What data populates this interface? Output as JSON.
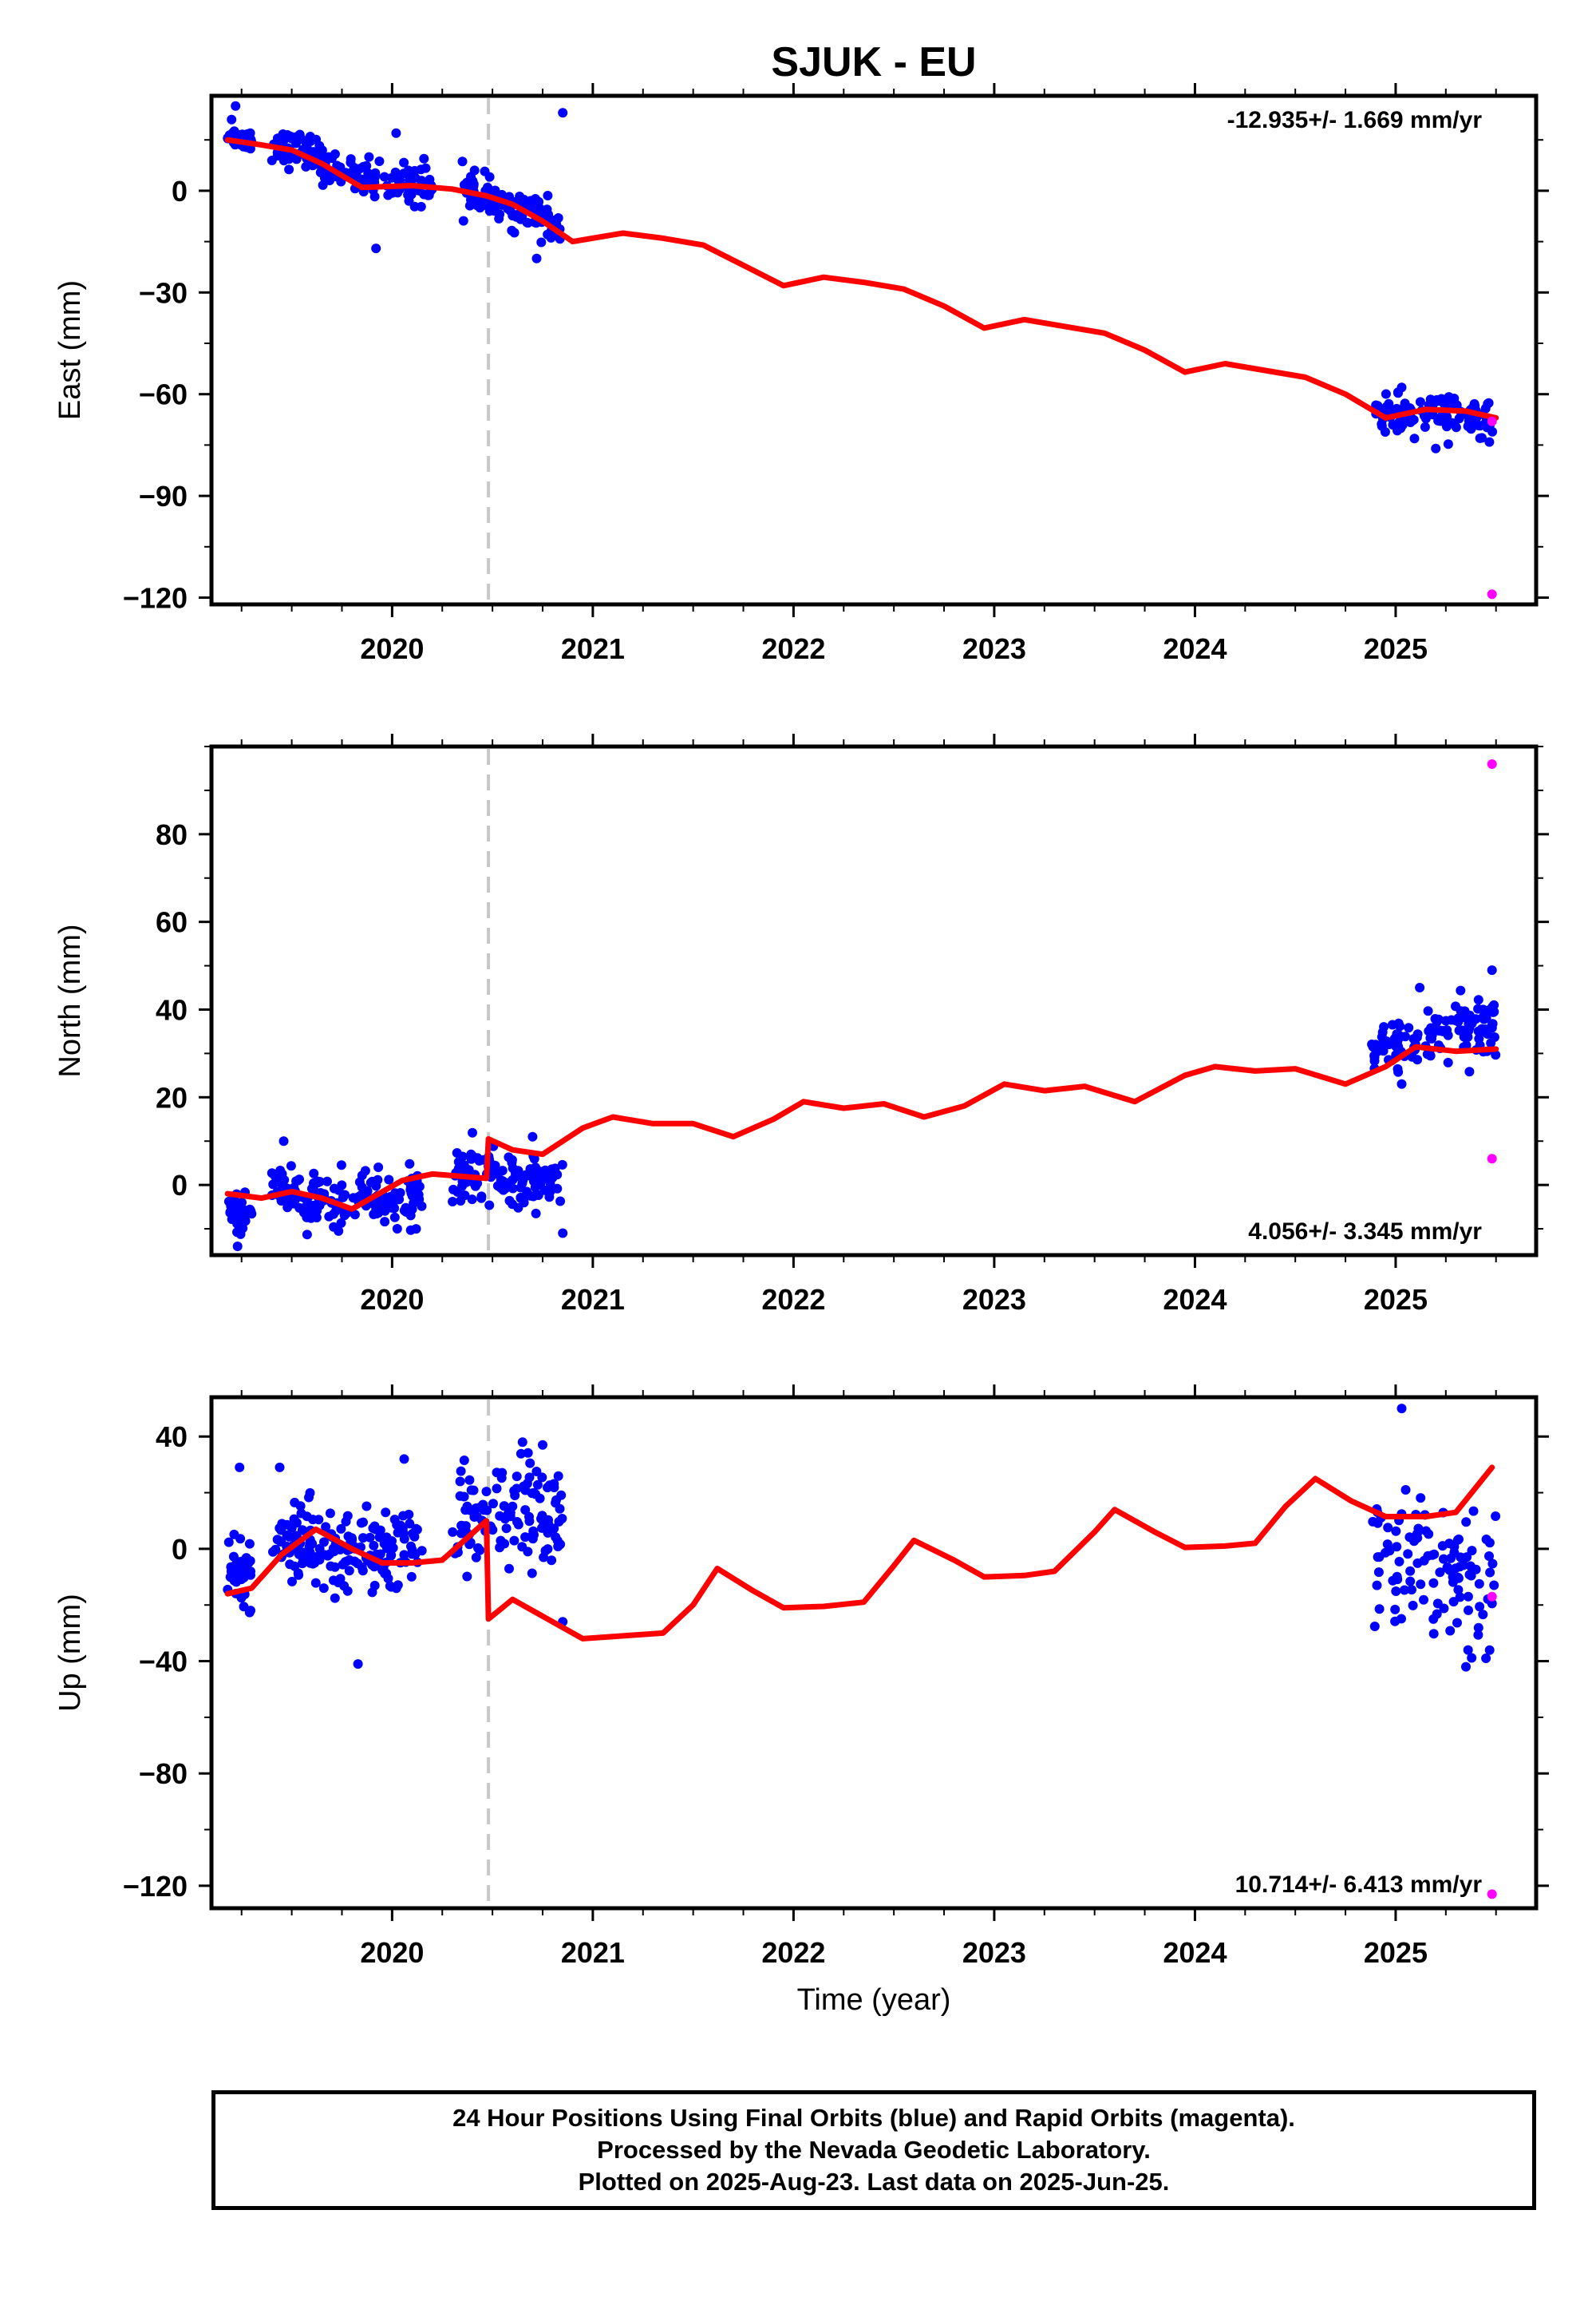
{
  "title": "SJUK - EU",
  "colors": {
    "final": "#0000ff",
    "rapid": "#ff00ff",
    "model": "#ff0000",
    "event": "#c8c8c8"
  },
  "chart_data": [
    {
      "type": "scatter",
      "component": "East",
      "ylabel": "East (mm)",
      "xlabel": "",
      "xlim": [
        2019.1,
        2025.7
      ],
      "ylim": [
        -122,
        28
      ],
      "yticks": [
        0,
        -30,
        -60,
        -90,
        -120
      ],
      "yticklabels": [
        "0",
        "−30",
        "−60",
        "−90",
        "−120"
      ],
      "xticks": [
        2020,
        2021,
        2022,
        2023,
        2024,
        2025
      ],
      "xticklabels": [
        "2020",
        "2021",
        "2022",
        "2023",
        "2024",
        "2025"
      ],
      "rate_label": "-12.935+/- 1.669 mm/yr",
      "rate_position": "top-right",
      "event_year": 2020.48,
      "final_clusters": [
        {
          "x0": 2019.18,
          "x1": 2019.3,
          "y0": 16,
          "y1": 15,
          "noise": 1.5,
          "n": 40
        },
        {
          "x0": 2019.4,
          "x1": 2019.65,
          "y0": 13,
          "y1": 11,
          "noise": 2.5,
          "n": 60
        },
        {
          "x0": 2019.65,
          "x1": 2020.2,
          "y0": 6,
          "y1": 1,
          "noise": 2.8,
          "n": 110
        },
        {
          "x0": 2020.35,
          "x1": 2020.85,
          "y0": 1,
          "y1": -11,
          "noise": 2.8,
          "n": 110
        },
        {
          "x0": 2024.9,
          "x1": 2025.5,
          "y0": -66,
          "y1": -67,
          "noise": 2.8,
          "n": 110
        }
      ],
      "final_outliers": [
        [
          2019.22,
          25
        ],
        [
          2019.2,
          21
        ],
        [
          2020.02,
          17
        ],
        [
          2019.92,
          -17
        ],
        [
          2020.72,
          -20
        ],
        [
          2020.85,
          23
        ],
        [
          2025.03,
          -58
        ],
        [
          2025.2,
          -76
        ],
        [
          2025.42,
          -73
        ]
      ],
      "rapid_points": [
        [
          2025.48,
          -68
        ],
        [
          2025.48,
          -119
        ]
      ],
      "model": [
        [
          2019.18,
          15
        ],
        [
          2019.35,
          13.5
        ],
        [
          2019.5,
          12
        ],
        [
          2019.65,
          8
        ],
        [
          2019.85,
          1
        ],
        [
          2020.1,
          1.5
        ],
        [
          2020.3,
          0.5
        ],
        [
          2020.47,
          -1.5
        ],
        [
          2020.6,
          -4
        ],
        [
          2020.75,
          -9
        ],
        [
          2020.9,
          -15
        ],
        [
          2021.15,
          -12.5
        ],
        [
          2021.35,
          -14
        ],
        [
          2021.55,
          -16
        ],
        [
          2021.75,
          -22
        ],
        [
          2021.95,
          -28
        ],
        [
          2022.15,
          -25.5
        ],
        [
          2022.35,
          -27
        ],
        [
          2022.55,
          -29
        ],
        [
          2022.75,
          -34
        ],
        [
          2022.95,
          -40.5
        ],
        [
          2023.15,
          -38
        ],
        [
          2023.35,
          -40
        ],
        [
          2023.55,
          -42
        ],
        [
          2023.75,
          -47
        ],
        [
          2023.95,
          -53.5
        ],
        [
          2024.15,
          -51
        ],
        [
          2024.35,
          -53
        ],
        [
          2024.55,
          -55
        ],
        [
          2024.75,
          -60
        ],
        [
          2024.95,
          -67
        ],
        [
          2025.15,
          -64.5
        ],
        [
          2025.35,
          -65
        ],
        [
          2025.5,
          -67
        ]
      ]
    },
    {
      "type": "scatter",
      "component": "North",
      "ylabel": "North (mm)",
      "xlabel": "",
      "xlim": [
        2019.1,
        2025.7
      ],
      "ylim": [
        -16,
        100
      ],
      "yticks": [
        0,
        20,
        40,
        60,
        80
      ],
      "yticklabels": [
        "0",
        "20",
        "40",
        "60",
        "80"
      ],
      "xticks": [
        2020,
        2021,
        2022,
        2023,
        2024,
        2025
      ],
      "xticklabels": [
        "2020",
        "2021",
        "2022",
        "2023",
        "2024",
        "2025"
      ],
      "rate_label": "4.056+/- 3.345 mm/yr",
      "rate_position": "bottom-right",
      "event_year": 2020.48,
      "final_clusters": [
        {
          "x0": 2019.18,
          "x1": 2019.3,
          "y0": -5,
          "y1": -8,
          "noise": 2.5,
          "n": 30
        },
        {
          "x0": 2019.4,
          "x1": 2019.7,
          "y0": -1,
          "y1": -4,
          "noise": 3,
          "n": 70
        },
        {
          "x0": 2019.7,
          "x1": 2020.15,
          "y0": -5,
          "y1": -2,
          "noise": 3,
          "n": 100
        },
        {
          "x0": 2020.3,
          "x1": 2020.85,
          "y0": 2,
          "y1": 1,
          "noise": 3.2,
          "n": 120
        },
        {
          "x0": 2024.88,
          "x1": 2025.05,
          "y0": 31,
          "y1": 31,
          "noise": 2.5,
          "n": 40
        },
        {
          "x0": 2025.05,
          "x1": 2025.5,
          "y0": 33,
          "y1": 37,
          "noise": 3.5,
          "n": 90
        }
      ],
      "final_outliers": [
        [
          2019.23,
          -14
        ],
        [
          2019.46,
          10
        ],
        [
          2020.12,
          -10
        ],
        [
          2020.7,
          11
        ],
        [
          2020.85,
          -11
        ],
        [
          2025.03,
          23
        ],
        [
          2025.12,
          45
        ],
        [
          2025.48,
          49
        ]
      ],
      "rapid_points": [
        [
          2025.48,
          96
        ],
        [
          2025.48,
          6
        ]
      ],
      "model": [
        [
          2019.18,
          -2
        ],
        [
          2019.35,
          -3
        ],
        [
          2019.5,
          -1.5
        ],
        [
          2019.65,
          -3
        ],
        [
          2019.8,
          -5.5
        ],
        [
          2020.05,
          1
        ],
        [
          2020.2,
          2.5
        ],
        [
          2020.47,
          1.5
        ],
        [
          2020.48,
          10.5
        ],
        [
          2020.6,
          8
        ],
        [
          2020.75,
          7
        ],
        [
          2020.95,
          13
        ],
        [
          2021.1,
          15.5
        ],
        [
          2021.3,
          14
        ],
        [
          2021.5,
          14
        ],
        [
          2021.7,
          11
        ],
        [
          2021.9,
          15
        ],
        [
          2022.05,
          19
        ],
        [
          2022.25,
          17.5
        ],
        [
          2022.45,
          18.5
        ],
        [
          2022.65,
          15.5
        ],
        [
          2022.85,
          18
        ],
        [
          2023.05,
          23
        ],
        [
          2023.25,
          21.5
        ],
        [
          2023.45,
          22.5
        ],
        [
          2023.7,
          19
        ],
        [
          2023.95,
          25
        ],
        [
          2024.1,
          27
        ],
        [
          2024.3,
          26
        ],
        [
          2024.5,
          26.5
        ],
        [
          2024.75,
          23
        ],
        [
          2024.95,
          27
        ],
        [
          2025.1,
          31.5
        ],
        [
          2025.3,
          30.5
        ],
        [
          2025.5,
          31
        ]
      ]
    },
    {
      "type": "scatter",
      "component": "Up",
      "ylabel": "Up (mm)",
      "xlabel": "Time (year)",
      "xlim": [
        2019.1,
        2025.7
      ],
      "ylim": [
        -128,
        54
      ],
      "yticks": [
        40,
        0,
        -40,
        -80,
        -120
      ],
      "yticklabels": [
        "40",
        "0",
        "−40",
        "−80",
        "−120"
      ],
      "xticks": [
        2020,
        2021,
        2022,
        2023,
        2024,
        2025
      ],
      "xticklabels": [
        "2020",
        "2021",
        "2022",
        "2023",
        "2024",
        "2025"
      ],
      "rate_label": "10.714+/- 6.413 mm/yr",
      "rate_position": "bottom-right",
      "event_year": 2020.48,
      "final_clusters": [
        {
          "x0": 2019.18,
          "x1": 2019.3,
          "y0": -8,
          "y1": -8,
          "noise": 7,
          "n": 35
        },
        {
          "x0": 2019.4,
          "x1": 2019.7,
          "y0": 0,
          "y1": 5,
          "noise": 7,
          "n": 70
        },
        {
          "x0": 2019.7,
          "x1": 2020.15,
          "y0": -3,
          "y1": -2,
          "noise": 8,
          "n": 110
        },
        {
          "x0": 2020.3,
          "x1": 2020.85,
          "y0": 10,
          "y1": 12,
          "noise": 10,
          "n": 120
        },
        {
          "x0": 2024.88,
          "x1": 2025.5,
          "y0": -2,
          "y1": -12,
          "noise": 11,
          "n": 110
        }
      ],
      "final_outliers": [
        [
          2019.24,
          29
        ],
        [
          2019.44,
          29
        ],
        [
          2019.83,
          -41
        ],
        [
          2020.06,
          32
        ],
        [
          2020.65,
          38
        ],
        [
          2020.75,
          37
        ],
        [
          2020.85,
          -26
        ],
        [
          2025.03,
          50
        ],
        [
          2025.05,
          21
        ],
        [
          2025.35,
          -42
        ],
        [
          2025.45,
          -39
        ]
      ],
      "rapid_points": [
        [
          2025.48,
          -17
        ],
        [
          2025.48,
          -123
        ]
      ],
      "model": [
        [
          2019.18,
          -16
        ],
        [
          2019.3,
          -14
        ],
        [
          2019.45,
          -2
        ],
        [
          2019.62,
          7
        ],
        [
          2019.8,
          0
        ],
        [
          2019.95,
          -5
        ],
        [
          2020.1,
          -5
        ],
        [
          2020.25,
          -4
        ],
        [
          2020.47,
          10
        ],
        [
          2020.48,
          -25
        ],
        [
          2020.6,
          -18
        ],
        [
          2020.75,
          -24
        ],
        [
          2020.95,
          -32
        ],
        [
          2021.15,
          -31
        ],
        [
          2021.35,
          -30
        ],
        [
          2021.5,
          -20
        ],
        [
          2021.62,
          -7
        ],
        [
          2021.8,
          -15
        ],
        [
          2021.95,
          -21
        ],
        [
          2022.15,
          -20.5
        ],
        [
          2022.35,
          -19
        ],
        [
          2022.5,
          -6
        ],
        [
          2022.6,
          3
        ],
        [
          2022.8,
          -4
        ],
        [
          2022.95,
          -10
        ],
        [
          2023.15,
          -9.5
        ],
        [
          2023.3,
          -8
        ],
        [
          2023.5,
          6
        ],
        [
          2023.6,
          14
        ],
        [
          2023.8,
          6
        ],
        [
          2023.95,
          0.5
        ],
        [
          2024.15,
          1
        ],
        [
          2024.3,
          2
        ],
        [
          2024.45,
          15
        ],
        [
          2024.6,
          25
        ],
        [
          2024.78,
          17
        ],
        [
          2024.95,
          11.5
        ],
        [
          2025.15,
          11.5
        ],
        [
          2025.3,
          13
        ],
        [
          2025.48,
          29
        ]
      ]
    }
  ],
  "footer": {
    "line1": "24 Hour Positions Using Final Orbits (blue) and Rapid Orbits (magenta).",
    "line2": "Processed by the Nevada Geodetic Laboratory.",
    "line3": "Plotted on 2025-Aug-23. Last data on 2025-Jun-25."
  }
}
